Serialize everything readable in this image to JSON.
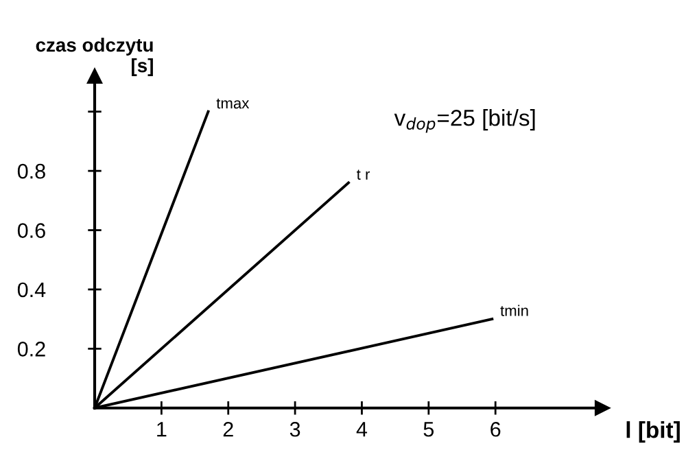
{
  "chart_data": {
    "type": "line",
    "xlabel": "l [bit]",
    "ylabel": "czas odczytu\n[s]",
    "series": [
      {
        "name": "tmax",
        "color": "#000000",
        "x": [
          0,
          1.7
        ],
        "values": [
          0,
          1.0
        ]
      },
      {
        "name": "t r",
        "color": "#000000",
        "x": [
          0,
          3.8
        ],
        "values": [
          0,
          0.76
        ]
      },
      {
        "name": "tmin",
        "color": "#000000",
        "x": [
          0,
          5.95
        ],
        "values": [
          0,
          0.3
        ]
      }
    ],
    "annotations": [
      "v$_{dop}$=25 [bit/s]"
    ],
    "xlim": [
      0,
      7.6
    ],
    "ylim": [
      0,
      1.12
    ],
    "xticks": [
      1,
      2,
      3,
      4,
      5,
      6
    ],
    "yticks": [
      0.2,
      0.4,
      0.6,
      0.8,
      {
        "value": 1.0,
        "label": null
      }
    ],
    "grid": false,
    "legend": false,
    "marker": "none",
    "line_style": "solid"
  }
}
